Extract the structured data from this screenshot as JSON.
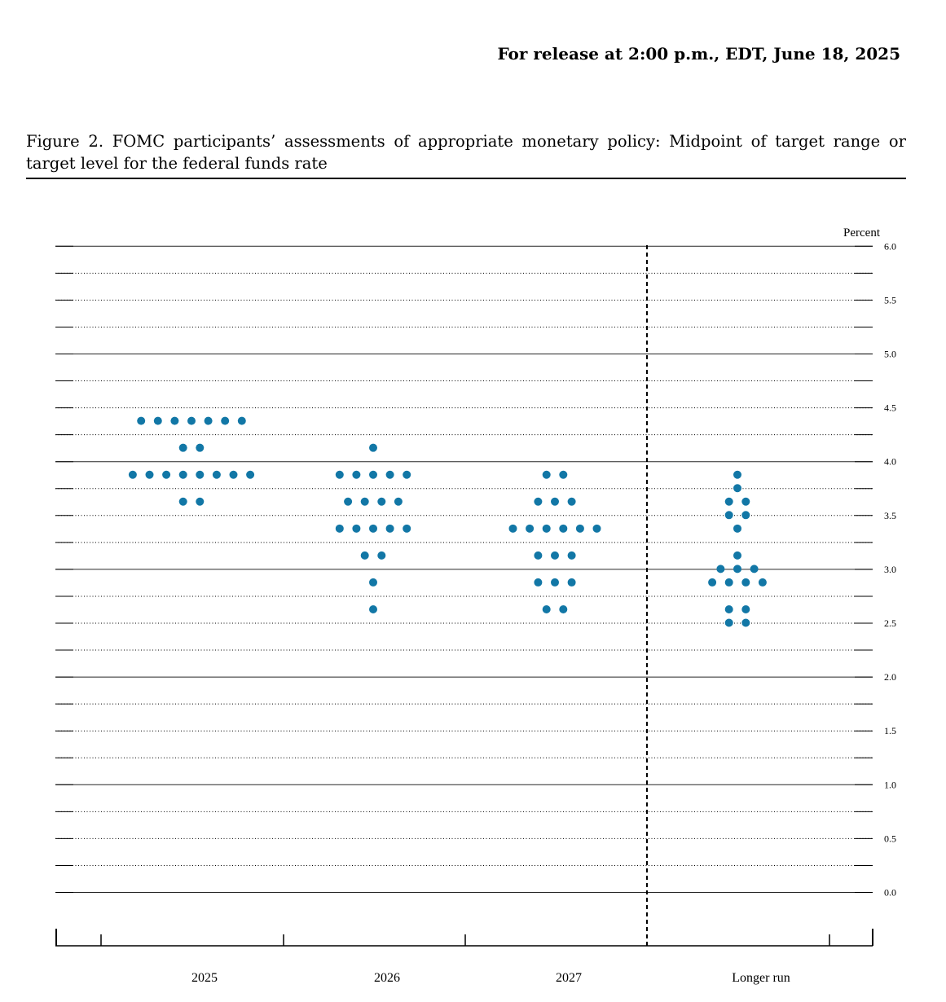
{
  "header": {
    "release_line": "For release at 2:00 p.m., EDT, June 18, 2025"
  },
  "figure": {
    "caption": "Figure 2.  FOMC participants’ assessments of appropriate monetary policy:  Midpoint of target range or target level for the federal funds rate"
  },
  "colors": {
    "dot": "#1277a6",
    "grid": "#000000"
  },
  "chart_data": {
    "type": "scatter",
    "title": "",
    "ylabel": "Percent",
    "xlabel": "",
    "ylim": [
      0,
      6
    ],
    "y_ticks": [
      "0.0",
      "0.5",
      "1.0",
      "1.5",
      "2.0",
      "2.5",
      "3.0",
      "3.5",
      "4.0",
      "4.5",
      "5.0",
      "5.5",
      "6.0"
    ],
    "grid": "dotted every 0.25, solid every 1.0",
    "categories": [
      "2025",
      "2026",
      "2027",
      "Longer run"
    ],
    "series": [
      {
        "category": "2025",
        "points": [
          {
            "y": 4.375,
            "count": 7
          },
          {
            "y": 4.125,
            "count": 2
          },
          {
            "y": 3.875,
            "count": 8
          },
          {
            "y": 3.625,
            "count": 2
          }
        ]
      },
      {
        "category": "2026",
        "points": [
          {
            "y": 4.125,
            "count": 1
          },
          {
            "y": 3.875,
            "count": 5
          },
          {
            "y": 3.625,
            "count": 4
          },
          {
            "y": 3.375,
            "count": 5
          },
          {
            "y": 3.125,
            "count": 2
          },
          {
            "y": 2.875,
            "count": 1
          },
          {
            "y": 2.625,
            "count": 1
          }
        ]
      },
      {
        "category": "2027",
        "points": [
          {
            "y": 3.875,
            "count": 2
          },
          {
            "y": 3.625,
            "count": 3
          },
          {
            "y": 3.375,
            "count": 6
          },
          {
            "y": 3.125,
            "count": 3
          },
          {
            "y": 2.875,
            "count": 3
          },
          {
            "y": 2.625,
            "count": 2
          }
        ]
      },
      {
        "category": "Longer run",
        "points": [
          {
            "y": 3.875,
            "count": 1
          },
          {
            "y": 3.75,
            "count": 1
          },
          {
            "y": 3.625,
            "count": 2
          },
          {
            "y": 3.5,
            "count": 2
          },
          {
            "y": 3.375,
            "count": 1
          },
          {
            "y": 3.125,
            "count": 1
          },
          {
            "y": 3.0,
            "count": 3
          },
          {
            "y": 2.875,
            "count": 4
          },
          {
            "y": 2.625,
            "count": 2
          },
          {
            "y": 2.5,
            "count": 2
          }
        ]
      }
    ]
  }
}
